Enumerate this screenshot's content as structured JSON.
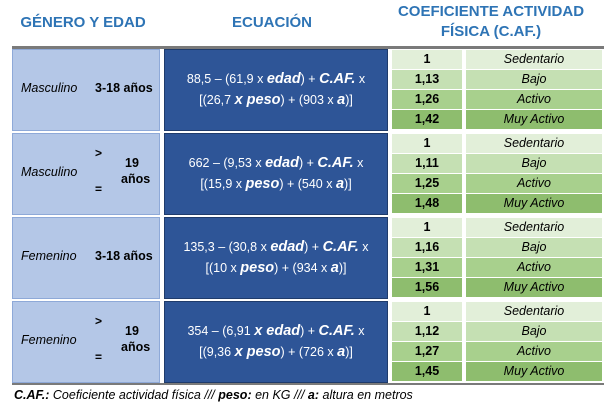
{
  "headers": {
    "gender_age": "GÉNERO Y EDAD",
    "equation": "ECUACIÓN",
    "coef_line1": "COEFICIENTE ACTIVIDAD",
    "coef_line2": "FÍSICA (C.AF.)"
  },
  "blocks": [
    {
      "gender": "Masculino",
      "age": "3-18 años",
      "eq_line1_a": "88,5 – (61,9 x ",
      "eq_line1_b": "edad",
      "eq_line1_c": ") + ",
      "eq_line1_d": "C.AF.",
      "eq_line1_e": " x",
      "eq_line2_a": "[(26,7 ",
      "eq_line2_b": "x",
      "eq_line2_c": " peso",
      "eq_line2_d": ") + (903 x ",
      "eq_line2_e": "a",
      "eq_line2_f": ")]",
      "rows": [
        {
          "value": "1",
          "label": "Sedentario"
        },
        {
          "value": "1,13",
          "label": "Bajo"
        },
        {
          "value": "1,26",
          "label": "Activo"
        },
        {
          "value": "1,42",
          "label": "Muy Activo"
        }
      ]
    },
    {
      "gender": "Masculino",
      "gt": ">",
      "num": "19",
      "anos": "años",
      "eq_sym": "=",
      "eq_line1_a": "662 – (9,53 x ",
      "eq_line1_b": "edad",
      "eq_line1_c": ") + ",
      "eq_line1_d": "C.AF.",
      "eq_line1_e": " x",
      "eq_line2_a": "[(15,9 x ",
      "eq_line2_b": "",
      "eq_line2_c": "peso",
      "eq_line2_d": ") + (540 x ",
      "eq_line2_e": "a",
      "eq_line2_f": ")]",
      "rows": [
        {
          "value": "1",
          "label": "Sedentario"
        },
        {
          "value": "1,11",
          "label": "Bajo"
        },
        {
          "value": "1,25",
          "label": "Activo"
        },
        {
          "value": "1,48",
          "label": "Muy Activo"
        }
      ]
    },
    {
      "gender": "Femenino",
      "age": "3-18 años",
      "eq_line1_a": "135,3 – (30,8 x ",
      "eq_line1_b": "edad",
      "eq_line1_c": ") + ",
      "eq_line1_d": "C.AF.",
      "eq_line1_e": " x",
      "eq_line2_a": "[(10 x ",
      "eq_line2_b": "",
      "eq_line2_c": "peso",
      "eq_line2_d": ") + (934 x ",
      "eq_line2_e": "a",
      "eq_line2_f": ")]",
      "rows": [
        {
          "value": "1",
          "label": "Sedentario"
        },
        {
          "value": "1,16",
          "label": "Bajo"
        },
        {
          "value": "1,31",
          "label": "Activo"
        },
        {
          "value": "1,56",
          "label": "Muy Activo"
        }
      ]
    },
    {
      "gender": "Femenino",
      "gt": ">",
      "num": "19",
      "anos": "años",
      "eq_sym": "=",
      "eq_line1_a": "354 – (6,91 ",
      "eq_line1_b": "x edad",
      "eq_line1_c": ") + ",
      "eq_line1_d": "C.AF.",
      "eq_line1_e": " x",
      "eq_line2_a": "[(9,36 ",
      "eq_line2_b": "x",
      "eq_line2_c": " peso",
      "eq_line2_d": ") + (726 x ",
      "eq_line2_e": "a",
      "eq_line2_f": ")]",
      "rows": [
        {
          "value": "1",
          "label": "Sedentario"
        },
        {
          "value": "1,12",
          "label": "Bajo"
        },
        {
          "value": "1,27",
          "label": "Activo"
        },
        {
          "value": "1,45",
          "label": "Muy Activo"
        }
      ]
    }
  ],
  "footer": {
    "caf_label": "C.AF.:",
    "caf_text": " Coeficiente actividad física /// ",
    "peso_label": "peso:",
    "peso_text": " en KG /// ",
    "a_label": "a:",
    "a_text": " altura en metros"
  },
  "colors": {
    "header_text": "#2e74b5",
    "gender_cell": "#b4c7e7",
    "equation_cell": "#2e5597",
    "sedentario": "#e2efd9",
    "bajo": "#c5e0b3",
    "activo": "#a8d08d",
    "muy_activo": "#8ebd6e"
  }
}
